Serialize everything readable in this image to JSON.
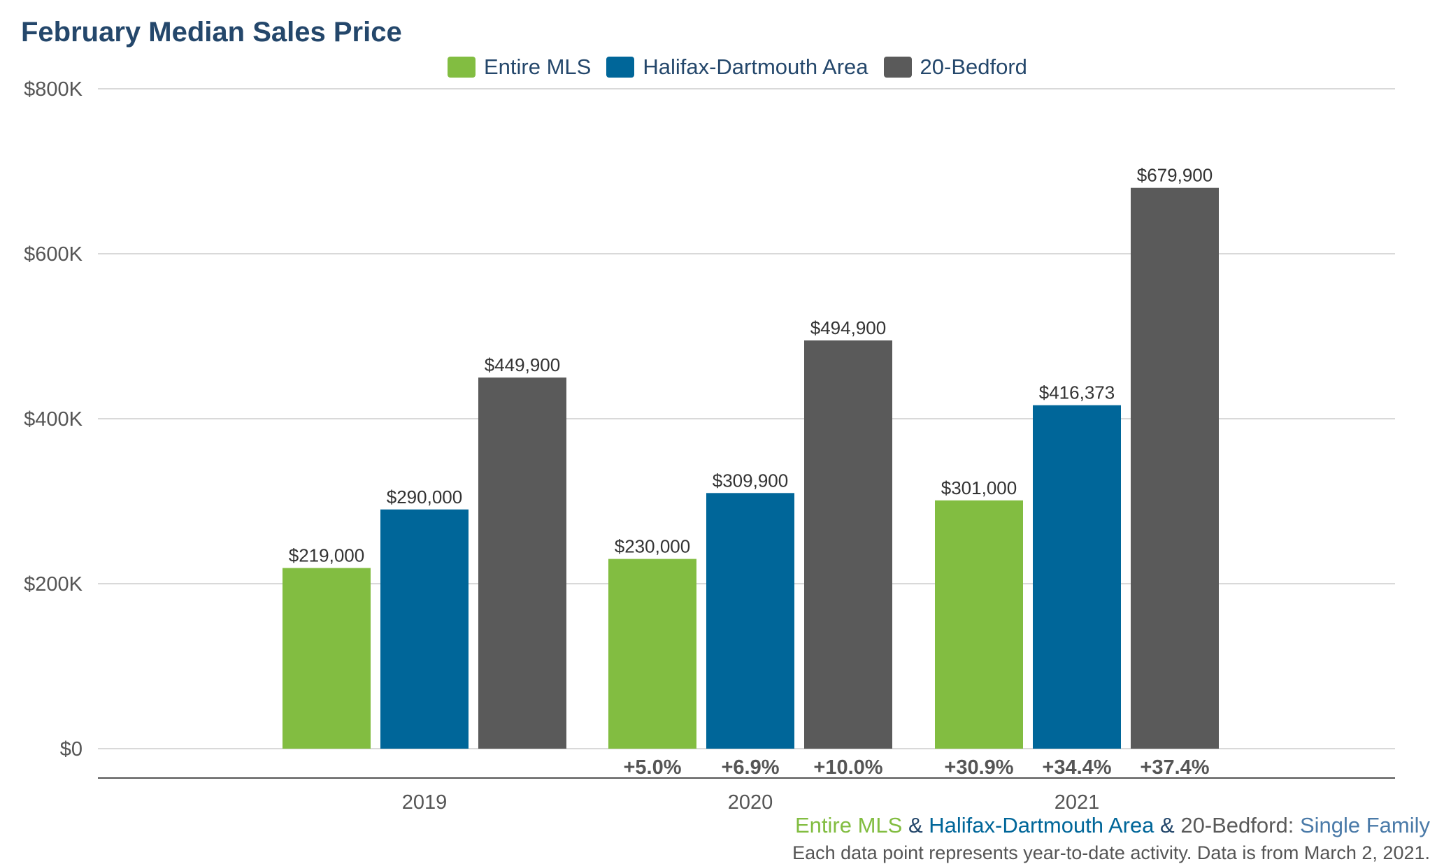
{
  "title": "February Median Sales Price",
  "colors": {
    "entire_mls": "#82bd41",
    "halifax": "#006699",
    "bedford": "#5a5a5a",
    "title": "#24476b",
    "grid": "#d9d9d9",
    "axis": "#555555"
  },
  "legend": [
    {
      "label": "Entire MLS",
      "color": "#82bd41"
    },
    {
      "label": "Halifax-Dartmouth Area",
      "color": "#006699"
    },
    {
      "label": "20-Bedford",
      "color": "#5a5a5a"
    }
  ],
  "chart_data": {
    "type": "bar",
    "title": "February Median Sales Price",
    "categories": [
      "2019",
      "2020",
      "2021"
    ],
    "series": [
      {
        "name": "Entire MLS",
        "color": "#82bd41",
        "values": [
          219000,
          230000,
          301000
        ],
        "labels": [
          "$219,000",
          "$230,000",
          "$301,000"
        ],
        "change": [
          "",
          "+5.0%",
          "+30.9%"
        ]
      },
      {
        "name": "Halifax-Dartmouth Area",
        "color": "#006699",
        "values": [
          290000,
          309900,
          416373
        ],
        "labels": [
          "$290,000",
          "$309,900",
          "$416,373"
        ],
        "change": [
          "",
          "+6.9%",
          "+34.4%"
        ]
      },
      {
        "name": "20-Bedford",
        "color": "#5a5a5a",
        "values": [
          449900,
          494900,
          679900
        ],
        "labels": [
          "$449,900",
          "$494,900",
          "$679,900"
        ],
        "change": [
          "",
          "+10.0%",
          "+37.4%"
        ]
      }
    ],
    "ylim": [
      0,
      800000
    ],
    "yticks": [
      0,
      200000,
      400000,
      600000,
      800000
    ],
    "ytick_labels": [
      "$0",
      "$200K",
      "$400K",
      "$600K",
      "$800K"
    ],
    "grid": true,
    "legend_position": "top-center"
  },
  "footnote": {
    "line1": {
      "entire": "Entire MLS",
      "amp1": " & ",
      "halifax": "Halifax-Dartmouth Area",
      "amp2": " & ",
      "bedford": "20-Bedford: ",
      "type": "Single Family"
    },
    "line2": "Each data point represents year-to-date activity. Data is from March 2, 2021."
  }
}
